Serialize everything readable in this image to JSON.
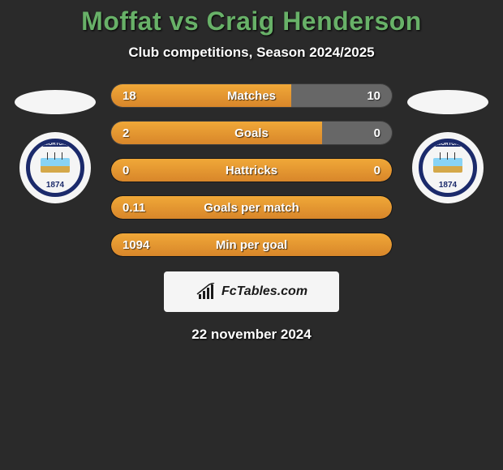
{
  "title": "Moffat vs Craig Henderson",
  "subtitle": "Club competitions, Season 2024/2025",
  "date_text": "22 november 2024",
  "footer_brand": "FcTables.com",
  "left_side": {
    "club_name": "MORTON",
    "club_year": "1874",
    "ring_color": "#1b2a6b"
  },
  "right_side": {
    "club_name": "MORTON",
    "club_year": "1874",
    "ring_color": "#1b2a6b"
  },
  "stats": [
    {
      "label": "Matches",
      "left_value": "18",
      "right_value": "10",
      "left_pct": 64.3,
      "right_fill": true,
      "right_gray": true
    },
    {
      "label": "Goals",
      "left_value": "2",
      "right_value": "0",
      "left_pct": 75,
      "right_fill": false,
      "right_gray": true
    },
    {
      "label": "Hattricks",
      "left_value": "0",
      "right_value": "0",
      "left_pct": 50,
      "right_fill": true,
      "right_gray": false
    },
    {
      "label": "Goals per match",
      "left_value": "0.11",
      "right_value": "",
      "left_pct": 100,
      "right_fill": false,
      "right_gray": false
    },
    {
      "label": "Min per goal",
      "left_value": "1094",
      "right_value": "",
      "left_pct": 100,
      "right_fill": false,
      "right_gray": false
    }
  ],
  "colors": {
    "background": "#2a2a2a",
    "title_color": "#68b168",
    "bar_orange_top": "#f0a838",
    "bar_orange_bottom": "#d8862a",
    "bar_gray": "#676767",
    "text_white": "#ffffff",
    "oval_fill": "#f5f5f5"
  }
}
